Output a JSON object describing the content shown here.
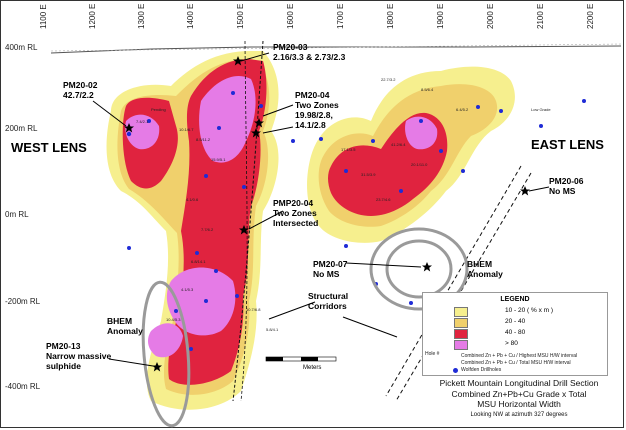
{
  "x_axis": {
    "ticks": [
      "1100 E",
      "1200 E",
      "1300 E",
      "1400 E",
      "1500 E",
      "1600 E",
      "1700 E",
      "1800 E",
      "1900 E",
      "2000 E",
      "2100 E",
      "2200 E"
    ]
  },
  "y_axis": {
    "labels": [
      "400m RL",
      "200m RL",
      "0m RL",
      "-200m RL",
      "-400m RL"
    ]
  },
  "lenses": {
    "west": "WEST LENS",
    "east": "EAST LENS"
  },
  "callouts": {
    "pm20_03": [
      "PM20-03",
      "2.16/3.3  & 2.73/2.3"
    ],
    "pm20_02": [
      "PM20-02",
      "42.7/2.2"
    ],
    "pm20_04": [
      "PM20-04",
      "Two Zones",
      "19.98/2.8,",
      "14.1/2.8"
    ],
    "pm20_06": [
      "PM20-06",
      "No MS"
    ],
    "pmp20_04": [
      "PMP20-04",
      "Two Zones",
      "Intersected"
    ],
    "pm20_07": [
      "PM20-07",
      "No MS"
    ],
    "bhem_east": [
      "BHEM",
      "Anomaly"
    ],
    "bhem_west": [
      "BHEM",
      "Anomaly"
    ],
    "structural": [
      "Structural",
      "Corridors"
    ],
    "pm20_13": [
      "PM20-13",
      "Narrow massive",
      "sulphide"
    ]
  },
  "legend": {
    "title": "LEGEND",
    "ranges": [
      {
        "label": "10 - 20  ( % x m )",
        "color": "#f6ef8e"
      },
      {
        "label": "20 - 40",
        "color": "#f0d06c"
      },
      {
        "label": "40 - 80",
        "color": "#e0233f"
      },
      {
        "label": "> 80",
        "color": "#e57be6"
      }
    ],
    "notes": [
      "Combined Zn + Pb + Cu / Highest MSU H/W interval",
      "Combined Zn + Pb + Cu / Total MSU H/W interval",
      "Wolfden Drillholes"
    ],
    "hole_label": "Hole #"
  },
  "scale": {
    "label": "Meters"
  },
  "caption": {
    "line1": "Pickett Mountain Longitudinal Drill Section",
    "line2": "Combined Zn+Pb+Cu Grade x Total",
    "line3": "MSU Horizontal Width",
    "line4": "Looking NW at azimuth 327 degrees"
  },
  "map_colors": {
    "low": "#f6ef8e",
    "mid": "#f0d06c",
    "high": "#e0233f",
    "very_high": "#e57be6",
    "drillhole": "#1f2bd6"
  }
}
